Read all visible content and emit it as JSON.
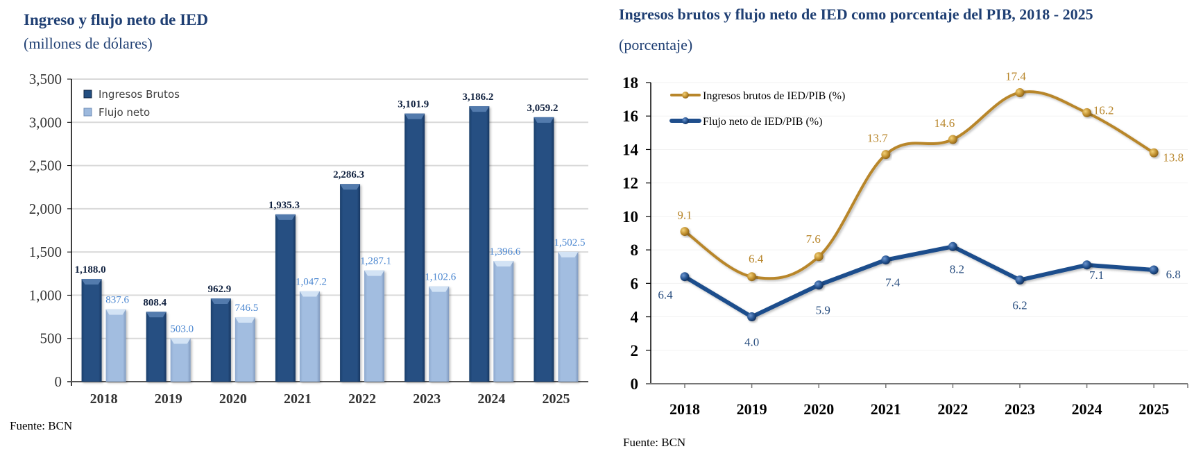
{
  "left_panel": {
    "title": "Ingreso y flujo neto de IED",
    "subtitle": "(millones de dólares)",
    "source": "Fuente: BCN"
  },
  "right_panel": {
    "title": "Ingresos brutos y flujo neto de IED como porcentaje del PIB, 2018 - 2025",
    "subtitle": "(porcentaje)",
    "source": "Fuente: BCN"
  },
  "colors": {
    "bar_dark": "#234E80",
    "bar_light": "#9DB9DD",
    "label_dark": "#10213F",
    "label_light": "#4A86D0",
    "line_gold": "#B8862B",
    "line_navy": "#1F4E8C",
    "title": "#1F3F73",
    "grid": "#D9D9D9"
  },
  "chart_data": [
    {
      "type": "bar",
      "title": "Ingreso y flujo neto de IED",
      "subtitle": "(millones de dólares)",
      "xlabel": "",
      "ylabel": "",
      "categories": [
        "2018",
        "2019",
        "2020",
        "2021",
        "2022",
        "2023",
        "2024",
        "2025"
      ],
      "series": [
        {
          "name": "Ingresos Brutos",
          "values": [
            1188.0,
            808.4,
            962.9,
            1935.3,
            2286.3,
            3101.9,
            3186.2,
            3059.2
          ],
          "labels": [
            "1,188.0",
            "808.4",
            "962.9",
            "1,935.3",
            "2,286.3",
            "3,101.9",
            "3,186.2",
            "3,059.2"
          ]
        },
        {
          "name": "Flujo neto",
          "values": [
            837.6,
            503.0,
            746.5,
            1047.2,
            1287.1,
            1102.6,
            1396.6,
            1502.5
          ],
          "labels": [
            "837.6",
            "503.0",
            "746.5",
            "1,047.2",
            "1,287.1",
            "1,102.6",
            "1,396.6",
            "1,502.5"
          ]
        }
      ],
      "ylim": [
        0,
        3500
      ],
      "yticks": [
        0,
        500,
        1000,
        1500,
        2000,
        2500,
        3000,
        3500
      ],
      "ytick_labels": [
        "0",
        "500",
        "1,000",
        "1,500",
        "2,000",
        "2,500",
        "3,000",
        "3,500"
      ],
      "grid": true,
      "legend": "top-left",
      "source": "Fuente: BCN"
    },
    {
      "type": "line",
      "title": "Ingresos brutos y flujo neto de IED como porcentaje del PIB, 2018 - 2025",
      "subtitle": "(porcentaje)",
      "xlabel": "",
      "ylabel": "",
      "x": [
        "2018",
        "2019",
        "2020",
        "2021",
        "2022",
        "2023",
        "2024",
        "2025"
      ],
      "series": [
        {
          "name": "Ingresos brutos de IED/PIB (%)",
          "values": [
            9.1,
            6.4,
            7.6,
            13.7,
            14.6,
            17.4,
            16.2,
            13.8
          ],
          "labels": [
            "9.1",
            "6.4",
            "7.6",
            "13.7",
            "14.6",
            "17.4",
            "16.2",
            "13.8"
          ],
          "smooth": true
        },
        {
          "name": "Flujo neto de IED/PIB (%)",
          "values": [
            6.4,
            4.0,
            5.9,
            7.4,
            8.2,
            6.2,
            7.1,
            6.8
          ],
          "labels": [
            "6.4",
            "4.0",
            "5.9",
            "7.4",
            "8.2",
            "6.2",
            "7.1",
            "6.8"
          ],
          "smooth": false
        }
      ],
      "ylim": [
        0,
        18
      ],
      "yticks": [
        0,
        2,
        4,
        6,
        8,
        10,
        12,
        14,
        16,
        18
      ],
      "ytick_labels": [
        "0",
        "2",
        "4",
        "6",
        "8",
        "10",
        "12",
        "14",
        "16",
        "18"
      ],
      "grid": true,
      "legend": "top-left",
      "source": "Fuente: BCN"
    }
  ]
}
